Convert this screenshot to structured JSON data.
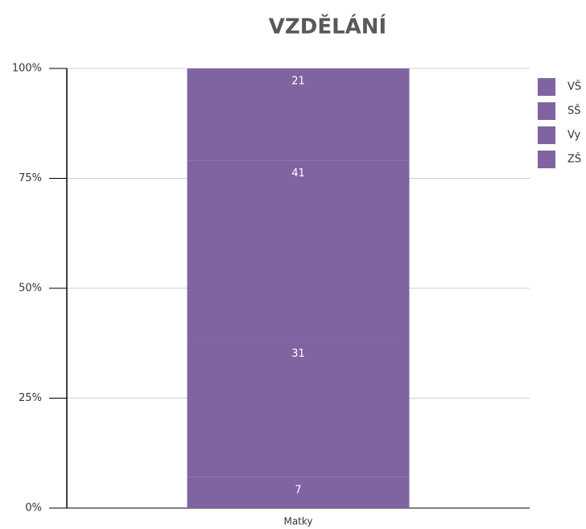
{
  "chart_data": {
    "type": "stacked_bar",
    "title": "VZDĚLÁNÍ",
    "categories": [
      "Matky"
    ],
    "series": [
      {
        "name": "ZŠ",
        "color": "#8064a2",
        "values": [
          7
        ]
      },
      {
        "name": "Vy",
        "color": "#8064a2",
        "values": [
          31
        ]
      },
      {
        "name": "SŠ",
        "color": "#8064a2",
        "values": [
          41
        ]
      },
      {
        "name": "VŠ",
        "color": "#8064a2",
        "values": [
          21
        ]
      }
    ],
    "ylim": [
      0,
      100
    ],
    "yticks": [
      {
        "value": 0,
        "label": "0%"
      },
      {
        "value": 25,
        "label": "25%"
      },
      {
        "value": 50,
        "label": "50%"
      },
      {
        "value": 75,
        "label": "75%"
      },
      {
        "value": 100,
        "label": "100%"
      }
    ],
    "grid": true,
    "legend": "right"
  }
}
